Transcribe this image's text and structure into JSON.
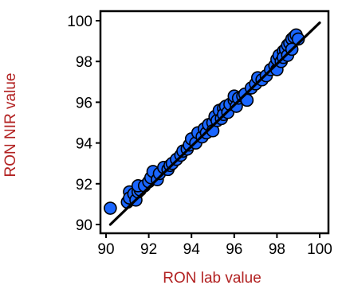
{
  "colors": {
    "axis_label": "#b22222",
    "point_fill": "#1a66ff",
    "point_stroke": "#000000",
    "fit_line": "#000000"
  },
  "chart_data": {
    "type": "scatter",
    "xlabel": "RON lab value",
    "ylabel": "RON NIR value",
    "xlim": [
      90,
      100
    ],
    "ylim": [
      90,
      100
    ],
    "xticks": [
      90,
      92,
      94,
      96,
      98,
      100
    ],
    "yticks": [
      90,
      92,
      94,
      96,
      98,
      100
    ],
    "grid": false,
    "reference_line": {
      "from": [
        90.2,
        90.0
      ],
      "to": [
        100.0,
        99.9
      ]
    },
    "points": [
      [
        90.2,
        90.8
      ],
      [
        91.0,
        91.1
      ],
      [
        91.1,
        91.6
      ],
      [
        91.1,
        91.3
      ],
      [
        91.3,
        91.5
      ],
      [
        91.4,
        91.2
      ],
      [
        91.5,
        91.6
      ],
      [
        91.6,
        91.7
      ],
      [
        91.5,
        91.9
      ],
      [
        91.8,
        91.9
      ],
      [
        92.0,
        92.1
      ],
      [
        92.1,
        92.3
      ],
      [
        92.2,
        92.6
      ],
      [
        92.4,
        92.2
      ],
      [
        92.5,
        92.5
      ],
      [
        92.7,
        92.8
      ],
      [
        92.9,
        92.7
      ],
      [
        93.0,
        92.9
      ],
      [
        93.1,
        93.0
      ],
      [
        93.3,
        93.2
      ],
      [
        93.5,
        93.4
      ],
      [
        93.6,
        93.6
      ],
      [
        93.8,
        93.7
      ],
      [
        93.9,
        93.9
      ],
      [
        94.0,
        94.2
      ],
      [
        94.2,
        94.0
      ],
      [
        94.3,
        94.5
      ],
      [
        94.5,
        94.3
      ],
      [
        94.6,
        94.7
      ],
      [
        94.7,
        94.5
      ],
      [
        94.8,
        94.9
      ],
      [
        95.0,
        95.0
      ],
      [
        95.0,
        94.6
      ],
      [
        95.1,
        95.3
      ],
      [
        95.2,
        95.1
      ],
      [
        95.3,
        95.6
      ],
      [
        95.4,
        95.2
      ],
      [
        95.5,
        95.7
      ],
      [
        95.5,
        95.4
      ],
      [
        95.6,
        95.8
      ],
      [
        95.7,
        95.5
      ],
      [
        95.8,
        95.9
      ],
      [
        96.0,
        96.1
      ],
      [
        96.0,
        96.3
      ],
      [
        96.1,
        95.8
      ],
      [
        96.2,
        96.2
      ],
      [
        96.4,
        96.3
      ],
      [
        96.5,
        96.4
      ],
      [
        96.6,
        96.1
      ],
      [
        96.8,
        96.7
      ],
      [
        97.0,
        96.9
      ],
      [
        97.1,
        97.2
      ],
      [
        97.3,
        97.1
      ],
      [
        97.5,
        97.3
      ],
      [
        97.7,
        97.6
      ],
      [
        97.9,
        97.8
      ],
      [
        98.0,
        97.6
      ],
      [
        98.0,
        98.1
      ],
      [
        98.1,
        98.3
      ],
      [
        98.2,
        98.0
      ],
      [
        98.3,
        98.5
      ],
      [
        98.3,
        98.2
      ],
      [
        98.4,
        98.6
      ],
      [
        98.5,
        98.3
      ],
      [
        98.5,
        98.8
      ],
      [
        98.6,
        98.9
      ],
      [
        98.7,
        99.1
      ],
      [
        98.7,
        98.6
      ],
      [
        98.8,
        99.2
      ],
      [
        98.9,
        99.3
      ],
      [
        99.0,
        99.1
      ]
    ]
  }
}
